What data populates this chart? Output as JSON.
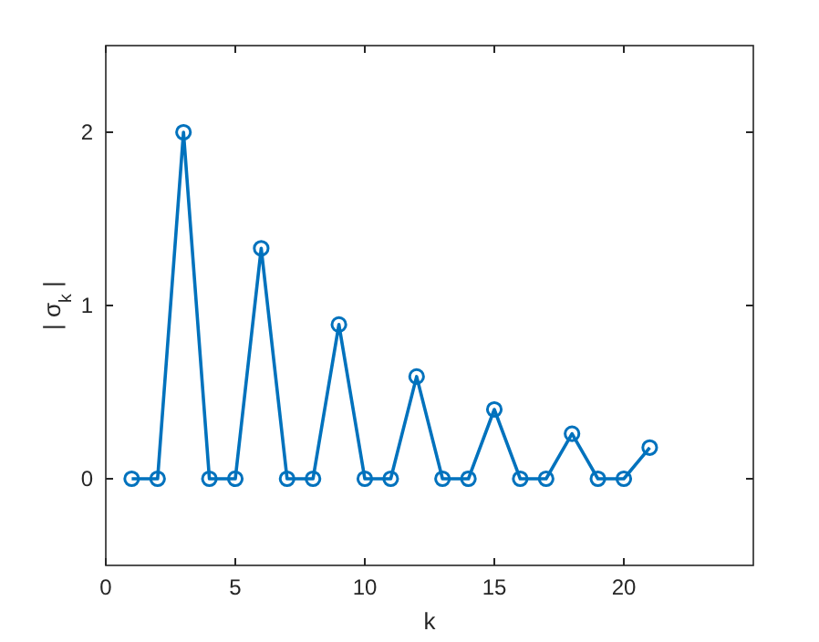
{
  "chart_data": {
    "type": "line",
    "xlabel": "k",
    "ylabel": "| σ$_{k}$ |",
    "x": [
      1,
      2,
      3,
      4,
      5,
      6,
      7,
      8,
      9,
      10,
      11,
      12,
      13,
      14,
      15,
      16,
      17,
      18,
      19,
      20,
      21
    ],
    "series": [
      {
        "color": "#0072bd",
        "values": [
          0,
          0,
          2,
          0,
          0,
          1.33,
          0,
          0,
          0.89,
          0,
          0,
          0.59,
          0,
          0,
          0.4,
          0,
          0,
          0.26,
          0,
          0,
          0.18
        ]
      }
    ],
    "xlim": [
      0,
      25
    ],
    "ylim": [
      -0.5,
      2.5
    ],
    "xticks": [
      0,
      5,
      10,
      15,
      20
    ],
    "yticks": [
      0,
      1,
      2
    ],
    "grid": false,
    "marker": "circle",
    "line_style": "solid"
  }
}
